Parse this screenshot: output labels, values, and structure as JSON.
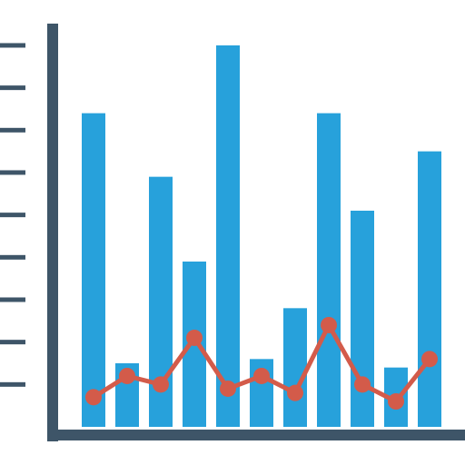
{
  "chart_data": {
    "type": "bar",
    "title": "",
    "xlabel": "",
    "ylabel": "",
    "grid": false,
    "legend": "none",
    "tick_labels": false,
    "ylim": [
      0,
      10
    ],
    "y_tick_values": [
      1,
      2,
      3,
      4,
      5,
      6,
      7,
      8,
      9
    ],
    "categories": [
      "",
      "",
      "",
      "",
      "",
      "",
      "",
      "",
      "",
      "",
      ""
    ],
    "series": [
      {
        "type": "bar",
        "values": [
          7.4,
          1.5,
          5.9,
          3.9,
          9.0,
          1.6,
          2.8,
          7.4,
          5.1,
          1.4,
          6.5
        ]
      },
      {
        "type": "line",
        "markers": true,
        "values": [
          0.7,
          1.2,
          1.0,
          2.1,
          0.9,
          1.2,
          0.8,
          2.4,
          1.0,
          0.6,
          1.6
        ]
      }
    ]
  },
  "colors": {
    "bars": "#27A1DB",
    "line": "#D35B4A",
    "axis": "#3E5568",
    "background": "#FFFFFF"
  }
}
